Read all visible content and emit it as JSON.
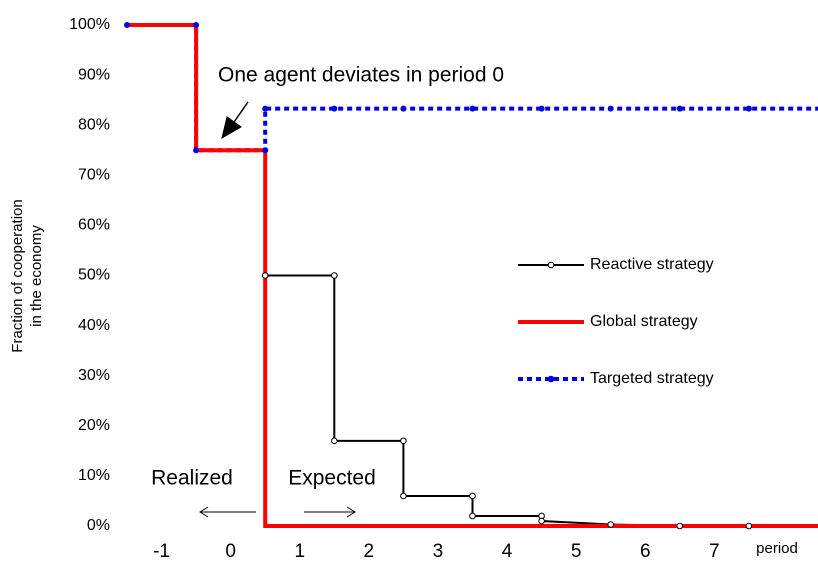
{
  "chart_data": {
    "type": "line",
    "y_label": [
      "Fraction of cooperation",
      "in the economy"
    ],
    "x_label": "period",
    "xlim": [
      -1.5,
      8.5
    ],
    "ylim": [
      0,
      100
    ],
    "xticks": [
      -1,
      0,
      1,
      2,
      3,
      4,
      5,
      6,
      7
    ],
    "yticks": [
      {
        "value": 0,
        "label": "0%"
      },
      {
        "value": 10,
        "label": "10%"
      },
      {
        "value": 20,
        "label": "20%"
      },
      {
        "value": 30,
        "label": "30%"
      },
      {
        "value": 40,
        "label": "40%"
      },
      {
        "value": 50,
        "label": "50%"
      },
      {
        "value": 60,
        "label": "60%"
      },
      {
        "value": 70,
        "label": "70%"
      },
      {
        "value": 80,
        "label": "80%"
      },
      {
        "value": 90,
        "label": "90%"
      },
      {
        "value": 100,
        "label": "100%"
      }
    ],
    "series": [
      {
        "name": "Reactive strategy",
        "color": "#000000",
        "marker": "open-circle",
        "dash": "solid",
        "x": [
          0.5,
          1.5,
          1.5,
          2.5,
          2.5,
          3.5,
          3.5,
          4.5,
          4.5,
          5.5,
          6.5,
          7.5
        ],
        "values": [
          50,
          50,
          17,
          17,
          6,
          6,
          2,
          2,
          1,
          0.3,
          0,
          0
        ]
      },
      {
        "name": "Global strategy",
        "color": "#ff0000",
        "marker": "none",
        "dash": "solid",
        "x": [
          -1.5,
          -0.5,
          -0.5,
          0.5,
          0.5
        ],
        "values": [
          100,
          100,
          75,
          75,
          0
        ]
      },
      {
        "name": "Targeted strategy",
        "color": "#0000dd",
        "marker": "dot",
        "dash": "dotted",
        "x": [
          -1.5,
          -0.5,
          -0.5,
          0.5,
          0.5,
          1.5,
          2.5,
          3.5,
          4.5,
          5.5,
          6.5,
          7.5
        ],
        "values": [
          100,
          100,
          75,
          75,
          83.3,
          83.3,
          83.3,
          83.3,
          83.3,
          83.3,
          83.3,
          83.3
        ]
      }
    ],
    "annotations": [
      "One agent deviates in period 0",
      "Realized",
      "Expected"
    ]
  }
}
